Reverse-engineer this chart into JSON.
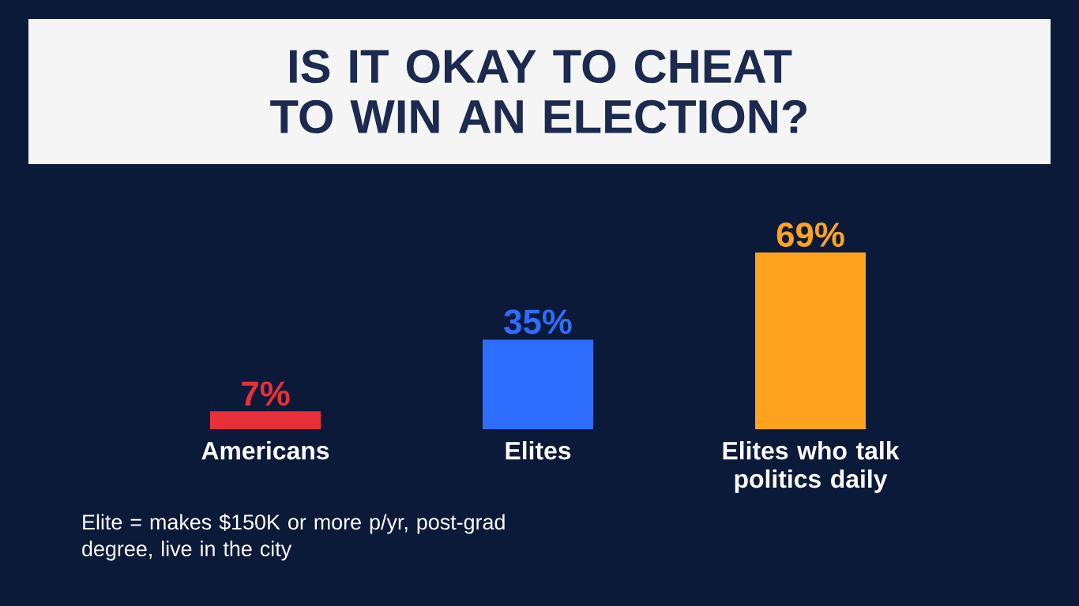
{
  "chart_data": {
    "type": "bar",
    "title": "IS IT OKAY TO CHEAT TO WIN AN ELECTION?",
    "categories": [
      "Americans",
      "Elites",
      "Elites who talk politics daily"
    ],
    "values": [
      7,
      35,
      69
    ],
    "colors": [
      "#e8303a",
      "#2f6dff",
      "#ffa31f"
    ],
    "data_labels": true,
    "value_labels": [
      "7%",
      "35%",
      "69%"
    ],
    "annotations": [
      "Elite = makes $150K or more p/yr, post-grad degree, live in the city"
    ]
  }
}
